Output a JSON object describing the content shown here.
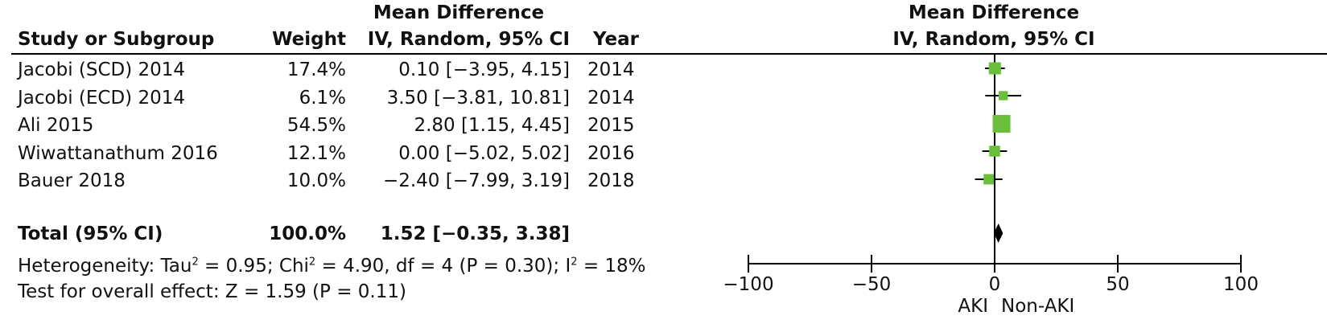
{
  "headers": {
    "study": "Study or Subgroup",
    "weight": "Weight",
    "md_title": "Mean Difference",
    "md_sub": "IV, Random, 95% CI",
    "year": "Year",
    "plot_title": "Mean Difference",
    "plot_sub": "IV, Random, 95% CI"
  },
  "studies": [
    {
      "name": "Jacobi (SCD) 2014",
      "weight": "17.4%",
      "ci_text": "0.10 [−3.95, 4.15]",
      "year": "2014"
    },
    {
      "name": "Jacobi (ECD) 2014",
      "weight": "6.1%",
      "ci_text": "3.50 [−3.81, 10.81]",
      "year": "2014"
    },
    {
      "name": "Ali 2015",
      "weight": "54.5%",
      "ci_text": "2.80 [1.15, 4.45]",
      "year": "2015"
    },
    {
      "name": "Wiwattanathum 2016",
      "weight": "12.1%",
      "ci_text": "0.00 [−5.02, 5.02]",
      "year": "2016"
    },
    {
      "name": "Bauer 2018",
      "weight": "10.0%",
      "ci_text": "−2.40 [−7.99, 3.19]",
      "year": "2018"
    }
  ],
  "total": {
    "name": "Total (95% CI)",
    "weight": "100.0%",
    "ci_text": "1.52 [−0.35, 3.38]"
  },
  "heterogeneity": {
    "label": "Heterogeneity: Tau",
    "tau2": "= 0.95; Chi",
    "chi2": "= 4.90, df = 4 (P = 0.30); I",
    "i2": "= 18%"
  },
  "overall_effect": "Test for overall effect: Z = 1.59 (P = 0.11)",
  "axis": {
    "left_label": "AKI",
    "right_label": "Non-AKI"
  },
  "colors": {
    "marker": "#6abf3a",
    "line": "#000000"
  },
  "chart_data": {
    "type": "forest",
    "xlim": [
      -100,
      100
    ],
    "xticks": [
      -100,
      -50,
      0,
      50,
      100
    ],
    "tick_labels": [
      "−100",
      "−50",
      "0",
      "50",
      "100"
    ],
    "points": [
      {
        "study": "Jacobi (SCD) 2014",
        "mean": 0.1,
        "lo": -3.95,
        "hi": 4.15,
        "weight": 17.4
      },
      {
        "study": "Jacobi (ECD) 2014",
        "mean": 3.5,
        "lo": -3.81,
        "hi": 10.81,
        "weight": 6.1
      },
      {
        "study": "Ali 2015",
        "mean": 2.8,
        "lo": 1.15,
        "hi": 4.45,
        "weight": 54.5
      },
      {
        "study": "Wiwattanathum 2016",
        "mean": 0.0,
        "lo": -5.02,
        "hi": 5.02,
        "weight": 12.1
      },
      {
        "study": "Bauer 2018",
        "mean": -2.4,
        "lo": -7.99,
        "hi": 3.19,
        "weight": 10.0
      }
    ],
    "total": {
      "mean": 1.52,
      "lo": -0.35,
      "hi": 3.38
    }
  }
}
